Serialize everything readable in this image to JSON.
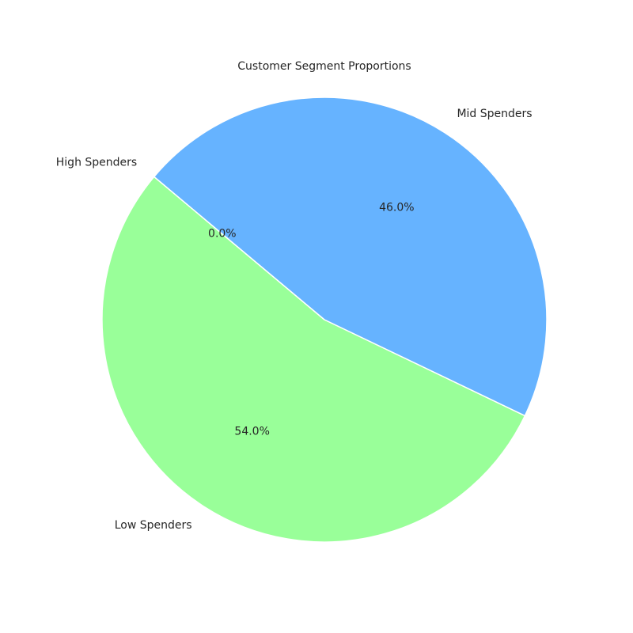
{
  "chart_data": {
    "type": "pie",
    "title": "Customer Segment Proportions",
    "slices": [
      {
        "label": "High Spenders",
        "value": 0.0,
        "pct_label": "0.0%",
        "color": "#ff9999"
      },
      {
        "label": "Low Spenders",
        "value": 54.0,
        "pct_label": "54.0%",
        "color": "#99ff99"
      },
      {
        "label": "Mid Spenders",
        "value": 46.0,
        "pct_label": "46.0%",
        "color": "#66b3ff"
      }
    ],
    "start_angle_deg": 140,
    "direction": "counterclockwise",
    "edge_color": "#ffffff",
    "legend": "none"
  }
}
